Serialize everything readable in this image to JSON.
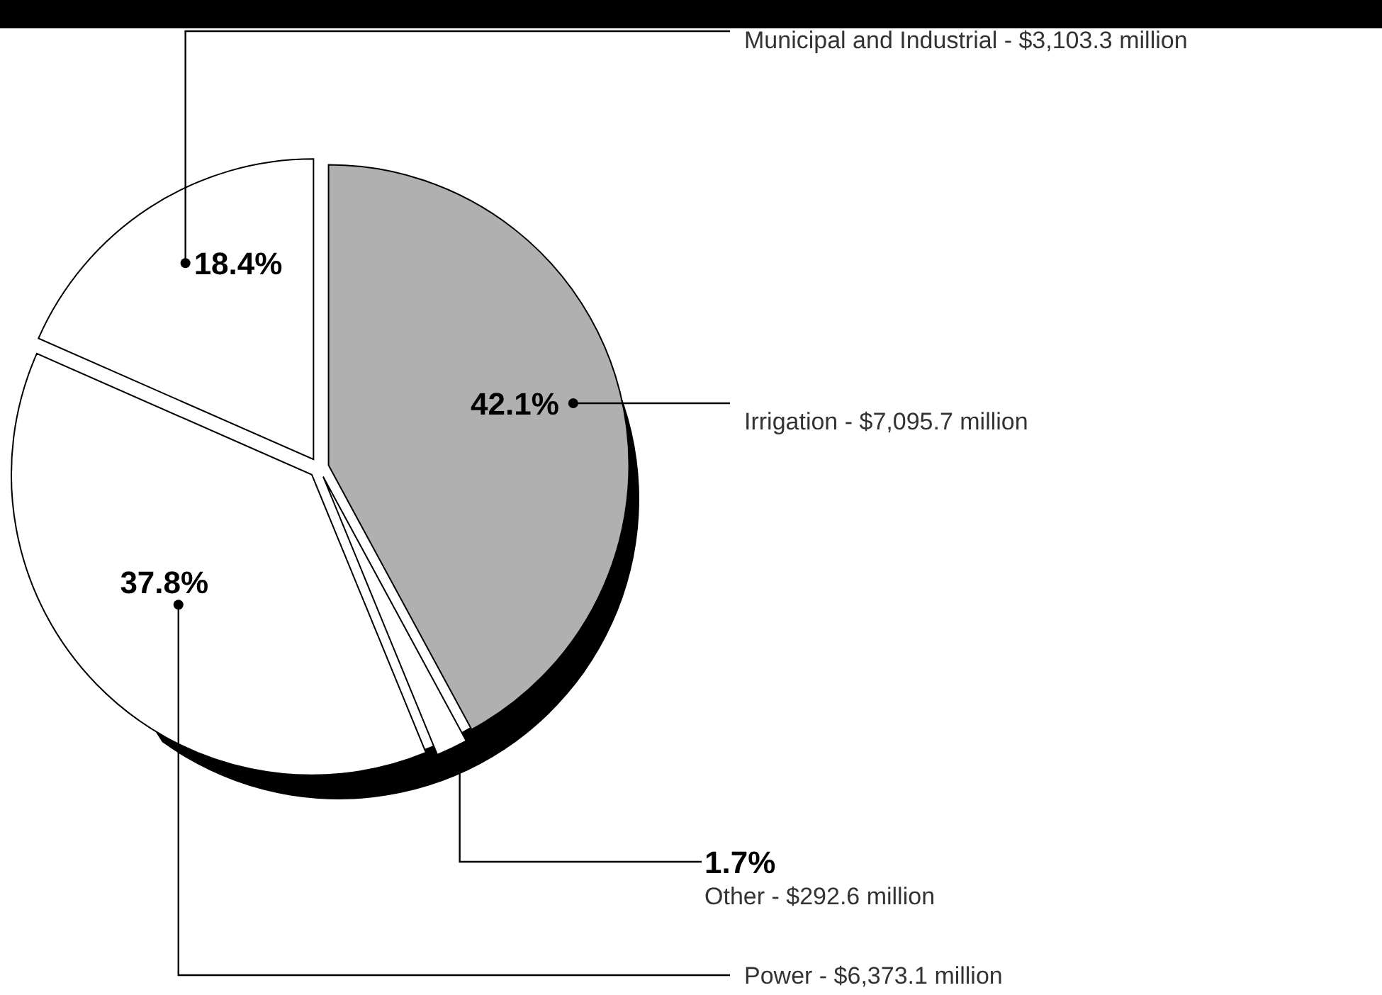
{
  "chart_data": {
    "type": "pie",
    "categories": [
      "Irrigation - $7,095.7 million",
      "Other - $292.6 million",
      "Power - $6,373.1 million",
      "Municipal and Industrial - $3,103.3 million"
    ],
    "values": [
      42.1,
      1.7,
      37.8,
      18.4
    ],
    "colors": [
      "#b0b0b0",
      "#ffffff",
      "#ffffff",
      "#ffffff"
    ],
    "value_labels": [
      "42.1%",
      "1.7%",
      "37.8%",
      "18.4%"
    ]
  }
}
